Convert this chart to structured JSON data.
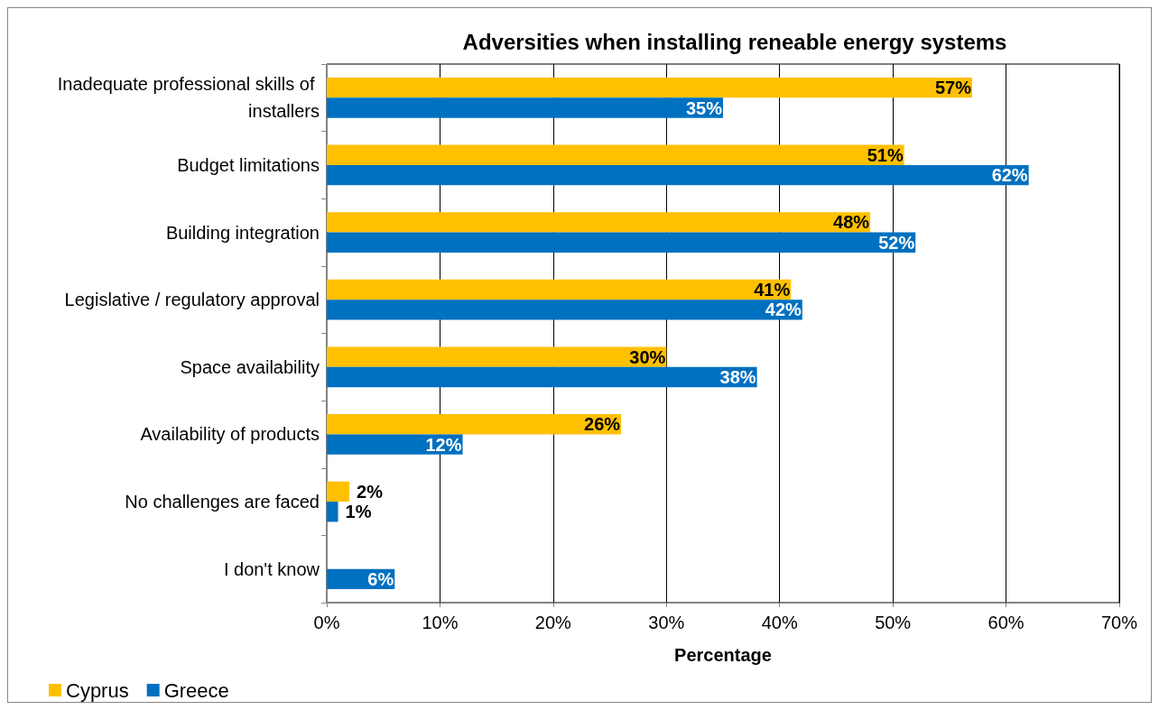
{
  "chart_data": {
    "type": "bar",
    "orientation": "horizontal",
    "title": "Adversities when installing reneable energy systems",
    "xlabel": "Percentage",
    "categories": [
      "Inadequate professional skills of installers",
      "Budget limitations",
      "Building integration",
      "Legislative / regulatory approval",
      "Space availability",
      "Availability of products",
      "No challenges are faced",
      "I don't know"
    ],
    "series": [
      {
        "name": "Cyprus",
        "color": "#ffc000",
        "values": [
          57,
          51,
          48,
          41,
          30,
          26,
          2,
          null
        ],
        "value_labels": [
          "57%",
          "51%",
          "48%",
          "41%",
          "30%",
          "26%",
          "2%",
          null
        ]
      },
      {
        "name": "Greece",
        "color": "#0070c0",
        "values": [
          35,
          62,
          52,
          42,
          38,
          12,
          1,
          6
        ],
        "value_labels": [
          "35%",
          "62%",
          "52%",
          "42%",
          "38%",
          "12%",
          "1%",
          "6%"
        ]
      }
    ],
    "xlim": [
      0,
      70
    ],
    "xticks": [
      {
        "value": 0,
        "label": "0%"
      },
      {
        "value": 10,
        "label": "10%"
      },
      {
        "value": 20,
        "label": "20%"
      },
      {
        "value": 30,
        "label": "30%"
      },
      {
        "value": 40,
        "label": "40%"
      },
      {
        "value": 50,
        "label": "50%"
      },
      {
        "value": 60,
        "label": "60%"
      },
      {
        "value": 70,
        "label": "70%"
      }
    ],
    "grid": "x",
    "legend": "bottom left"
  }
}
